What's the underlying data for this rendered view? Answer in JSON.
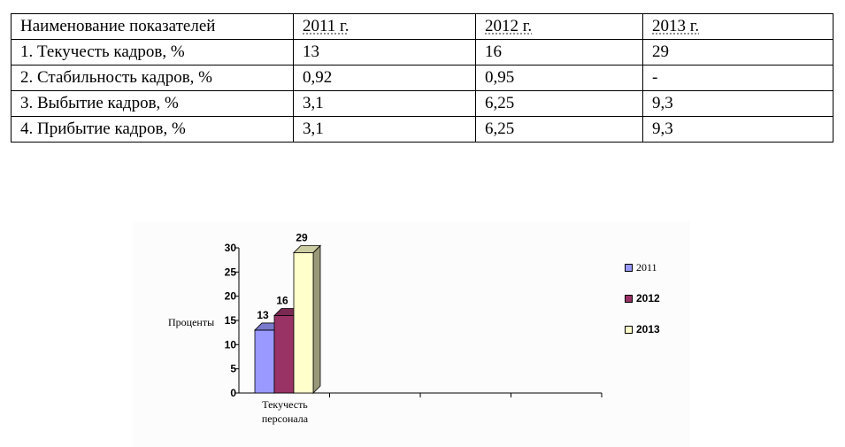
{
  "table": {
    "headers": [
      "Наименование показателей",
      "2011 г.",
      "2012 г.",
      "2013 г."
    ],
    "rows": [
      [
        "1. Текучесть кадров, %",
        "13",
        "16",
        "29"
      ],
      [
        "2. Стабильность кадров, %",
        "0,92",
        "0,95",
        "-"
      ],
      [
        "3. Выбытие кадров, %",
        "3,1",
        "6,25",
        "9,3"
      ],
      [
        "4. Прибытие кадров, %",
        "3,1",
        "6,25",
        "9,3"
      ]
    ]
  },
  "chart_data": {
    "type": "bar",
    "title": "",
    "categories": [
      "Текучесть персонала"
    ],
    "category_lines": [
      "Текучесть",
      "персонала"
    ],
    "xlabel": "",
    "ylabel": "Проценты",
    "ylim": [
      0,
      30
    ],
    "yticks": [
      0,
      5,
      10,
      15,
      20,
      25,
      30
    ],
    "ytick_labels": [
      "0",
      "5",
      "10",
      "15",
      "20",
      "25",
      "30"
    ],
    "grid": false,
    "legend_position": "right",
    "three_d": true,
    "series": [
      {
        "name": "2011",
        "values": [
          13
        ],
        "data_labels": [
          "13"
        ],
        "color": "#9999FF"
      },
      {
        "name": "2012",
        "values": [
          16
        ],
        "data_labels": [
          "16"
        ],
        "color": "#993366"
      },
      {
        "name": "2013",
        "values": [
          29
        ],
        "data_labels": [
          "29"
        ],
        "color": "#FFFFCC"
      }
    ]
  }
}
